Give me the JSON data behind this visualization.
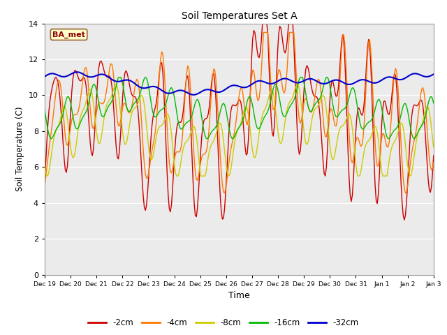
{
  "title": "Soil Temperatures Set A",
  "xlabel": "Time",
  "ylabel": "Soil Temperature (C)",
  "ylim": [
    0,
    14
  ],
  "yticks": [
    0,
    2,
    4,
    6,
    8,
    10,
    12,
    14
  ],
  "legend_label": "BA_met",
  "fig_facecolor": "#ffffff",
  "plot_facecolor": "#ebebeb",
  "line_colors": {
    "-2cm": "#cc0000",
    "-4cm": "#ff7700",
    "-8cm": "#cccc00",
    "-16cm": "#00bb00",
    "-32cm": "#0000cc"
  },
  "tick_labels": [
    "Dec 19",
    "Dec 20",
    "Dec 21",
    "Dec 22",
    "Dec 23",
    "Dec 24",
    "Dec 25",
    "Dec 26",
    "Dec 27",
    "Dec 28",
    "Dec 29",
    "Dec 30",
    "Dec 31",
    "Jan 1",
    "Jan 2",
    "Jan 3"
  ],
  "depths": [
    "-2cm",
    "-4cm",
    "-8cm",
    "-16cm",
    "-32cm"
  ]
}
